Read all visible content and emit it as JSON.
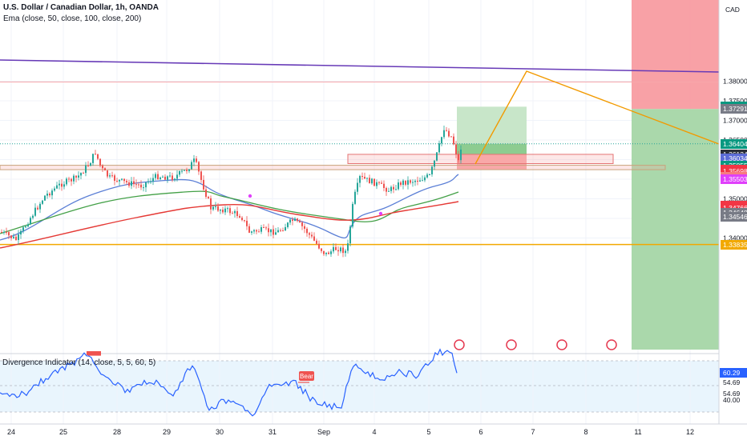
{
  "header": {
    "symbol_title": "U.S. Dollar / Canadian Dollar, 1h, OANDA",
    "ema_legend": "Ema (close, 50, close, 100, close, 200)",
    "divergence_legend": "Divergence Indicator (14, close, 5, 5, 60, 5)"
  },
  "price_axis": {
    "currency": "CAD",
    "ticks": [
      {
        "label": "1.38000",
        "value": 1.38
      },
      {
        "label": "1.37500",
        "value": 1.375
      },
      {
        "label": "1.37000",
        "value": 1.37
      },
      {
        "label": "1.36500",
        "value": 1.365
      },
      {
        "label": "1.35000",
        "value": 1.35
      },
      {
        "label": "1.34000",
        "value": 1.34
      }
    ]
  },
  "price_tags": [
    {
      "label": "1.37350",
      "value": 1.3735,
      "color": "#089981"
    },
    {
      "label": "1.37291",
      "value": 1.37291,
      "color": "#787b86"
    },
    {
      "label": "1.36404",
      "value": 1.36404,
      "color": "#089981"
    },
    {
      "label": "1.36134",
      "value": 1.36134,
      "color": "#2a2e39"
    },
    {
      "label": "1.36034",
      "value": 1.36034,
      "color": "#5b6bd6"
    },
    {
      "label": "1.35855",
      "value": 1.35855,
      "color": "#089981"
    },
    {
      "label": "1.35743",
      "value": 1.35743,
      "color": "#f23645"
    },
    {
      "label": "1.35698",
      "value": 1.35698,
      "color": "#f23645"
    },
    {
      "label": "1.35556",
      "value": 1.35556,
      "color": "#f77c80"
    },
    {
      "label": "1.35503",
      "value": 1.35503,
      "color": "#e040fb"
    },
    {
      "label": "1.34826",
      "value": 1.34826,
      "color": "#f23645"
    },
    {
      "label": "1.34766",
      "value": 1.34766,
      "color": "#f23645"
    },
    {
      "label": "1.34648",
      "value": 1.34648,
      "color": "#787b86"
    },
    {
      "label": "1.34546",
      "value": 1.34546,
      "color": "#787b86"
    },
    {
      "label": "1.33835",
      "value": 1.33835,
      "color": "#f2a900"
    }
  ],
  "oscillator_axis": {
    "current": {
      "label": "60.29",
      "color": "#2962ff"
    },
    "ticks": [
      "54.69",
      "54.69",
      "40.00"
    ]
  },
  "time_axis": {
    "labels": [
      "24",
      "25",
      "28",
      "29",
      "30",
      "31",
      "Sep",
      "4",
      "5",
      "6",
      "7",
      "8",
      "11",
      "12"
    ]
  },
  "annotations": {
    "bear_label": "Bear"
  },
  "colors": {
    "ema50": "#5b7fd6",
    "ema100": "#43a047",
    "ema200": "#e53935",
    "up_candle": "#26a69a",
    "down_candle": "#ef5350",
    "trendline": "#673ab7",
    "projection": "#f29a00",
    "profit_zone": "#a5d6a7",
    "loss_zone": "#f8a5a5",
    "oscillator": "#2962ff"
  },
  "chart_data": {
    "type": "line",
    "title": "U.S. Dollar / Canadian Dollar, 1h, OANDA",
    "x_labels": [
      "24",
      "25",
      "28",
      "29",
      "30",
      "31",
      "Sep",
      "4",
      "5",
      "6",
      "7",
      "8",
      "11",
      "12"
    ],
    "close_approx": [
      1.3522,
      1.3535,
      1.357,
      1.359,
      1.3601,
      1.3585,
      1.3575,
      1.3565,
      1.359,
      1.361,
      1.357,
      1.3555,
      1.354,
      1.3525,
      1.352,
      1.3512,
      1.3505,
      1.356,
      1.36,
      1.3598,
      1.3605,
      1.3615,
      1.366,
      1.364
    ],
    "ylim": [
      1.336,
      1.3835
    ],
    "series": [
      {
        "name": "Ema (close, 50)",
        "values": [
          1.3525,
          1.354,
          1.356,
          1.3575,
          1.358,
          1.357,
          1.356,
          1.355,
          1.3535,
          1.352,
          1.354,
          1.3565,
          1.359,
          1.3603
        ]
      },
      {
        "name": "Ema (close, 100)",
        "values": [
          1.354,
          1.355,
          1.356,
          1.357,
          1.3575,
          1.3568,
          1.356,
          1.355,
          1.3545,
          1.3555,
          1.3565,
          1.3575,
          1.3586
        ]
      },
      {
        "name": "Ema (close, 200)",
        "values": [
          1.353,
          1.3538,
          1.3546,
          1.3554,
          1.356,
          1.356,
          1.3556,
          1.3552,
          1.355,
          1.3555,
          1.3562,
          1.357
        ]
      }
    ],
    "levels": {
      "entry": 1.36404,
      "target": 1.3735,
      "stop": 1.35855,
      "trendline_end": 1.37291,
      "support_zone_top": 1.36134,
      "support_zone_bottom": 1.36034,
      "lower_zone": 1.35855,
      "bottom_line": 1.33835
    }
  }
}
